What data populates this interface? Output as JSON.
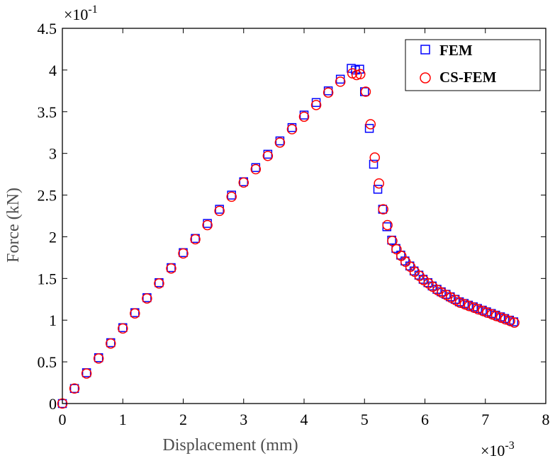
{
  "chart_data": {
    "type": "scatter",
    "title": "",
    "xlabel": "Displacement (mm)",
    "ylabel": "Force (kN)",
    "x_multiplier_label": "×10",
    "x_multiplier_exp": "-3",
    "y_multiplier_label": "×10",
    "y_multiplier_exp": "-1",
    "xlim": [
      0,
      8
    ],
    "ylim": [
      0,
      4.5
    ],
    "x_ticks": [
      0,
      1,
      2,
      3,
      4,
      5,
      6,
      7,
      8
    ],
    "x_tick_labels": [
      "0",
      "1",
      "2",
      "3",
      "4",
      "5",
      "6",
      "7",
      "8"
    ],
    "y_ticks": [
      0,
      0.5,
      1,
      1.5,
      2,
      2.5,
      3,
      3.5,
      4,
      4.5
    ],
    "y_tick_labels": [
      "0",
      "0.5",
      "1",
      "1.5",
      "2",
      "2.5",
      "3",
      "3.5",
      "4",
      "4.5"
    ],
    "grid": false,
    "legend_position": "top-right",
    "series": [
      {
        "name": "FEM",
        "marker": "square",
        "color": "#0000ff",
        "x": [
          0,
          0.2,
          0.4,
          0.6,
          0.8,
          1.0,
          1.2,
          1.4,
          1.6,
          1.8,
          2.0,
          2.2,
          2.4,
          2.6,
          2.8,
          3.0,
          3.2,
          3.4,
          3.6,
          3.8,
          4.0,
          4.2,
          4.4,
          4.6,
          4.78,
          4.85,
          4.92,
          5.0,
          5.08,
          5.15,
          5.22,
          5.3,
          5.37,
          5.45,
          5.52,
          5.6,
          5.67,
          5.75,
          5.82,
          5.9,
          5.97,
          6.05,
          6.12,
          6.2,
          6.27,
          6.35,
          6.42,
          6.5,
          6.57,
          6.65,
          6.72,
          6.8,
          6.87,
          6.95,
          7.02,
          7.1,
          7.17,
          7.25,
          7.32,
          7.4,
          7.47
        ],
        "y": [
          0,
          0.18,
          0.37,
          0.55,
          0.73,
          0.91,
          1.09,
          1.27,
          1.45,
          1.63,
          1.81,
          1.98,
          2.16,
          2.33,
          2.5,
          2.66,
          2.83,
          2.99,
          3.15,
          3.31,
          3.46,
          3.61,
          3.75,
          3.89,
          4.02,
          4.0,
          4.01,
          3.74,
          3.3,
          2.87,
          2.57,
          2.33,
          2.12,
          1.96,
          1.86,
          1.78,
          1.71,
          1.65,
          1.59,
          1.54,
          1.49,
          1.45,
          1.41,
          1.37,
          1.34,
          1.31,
          1.28,
          1.25,
          1.22,
          1.2,
          1.18,
          1.16,
          1.14,
          1.12,
          1.1,
          1.08,
          1.06,
          1.04,
          1.02,
          1.0,
          0.98
        ]
      },
      {
        "name": "CS-FEM",
        "marker": "circle",
        "color": "#ff0000",
        "x": [
          0,
          0.2,
          0.4,
          0.6,
          0.8,
          1.0,
          1.2,
          1.4,
          1.6,
          1.8,
          2.0,
          2.2,
          2.4,
          2.6,
          2.8,
          3.0,
          3.2,
          3.4,
          3.6,
          3.8,
          4.0,
          4.2,
          4.4,
          4.6,
          4.8,
          4.87,
          4.93,
          5.02,
          5.1,
          5.17,
          5.24,
          5.31,
          5.38,
          5.46,
          5.53,
          5.61,
          5.68,
          5.76,
          5.83,
          5.91,
          5.98,
          6.06,
          6.13,
          6.21,
          6.28,
          6.36,
          6.43,
          6.51,
          6.58,
          6.66,
          6.73,
          6.81,
          6.88,
          6.96,
          7.03,
          7.11,
          7.18,
          7.26,
          7.33,
          7.41,
          7.48
        ],
        "y": [
          0,
          0.18,
          0.36,
          0.54,
          0.72,
          0.9,
          1.08,
          1.26,
          1.44,
          1.62,
          1.8,
          1.97,
          2.14,
          2.31,
          2.48,
          2.65,
          2.81,
          2.97,
          3.13,
          3.29,
          3.44,
          3.58,
          3.73,
          3.86,
          3.96,
          3.94,
          3.95,
          3.74,
          3.35,
          2.95,
          2.64,
          2.33,
          2.14,
          1.95,
          1.85,
          1.77,
          1.7,
          1.64,
          1.58,
          1.53,
          1.48,
          1.44,
          1.4,
          1.36,
          1.33,
          1.3,
          1.27,
          1.24,
          1.21,
          1.19,
          1.17,
          1.15,
          1.13,
          1.11,
          1.09,
          1.07,
          1.05,
          1.03,
          1.01,
          0.99,
          0.97
        ]
      }
    ]
  }
}
